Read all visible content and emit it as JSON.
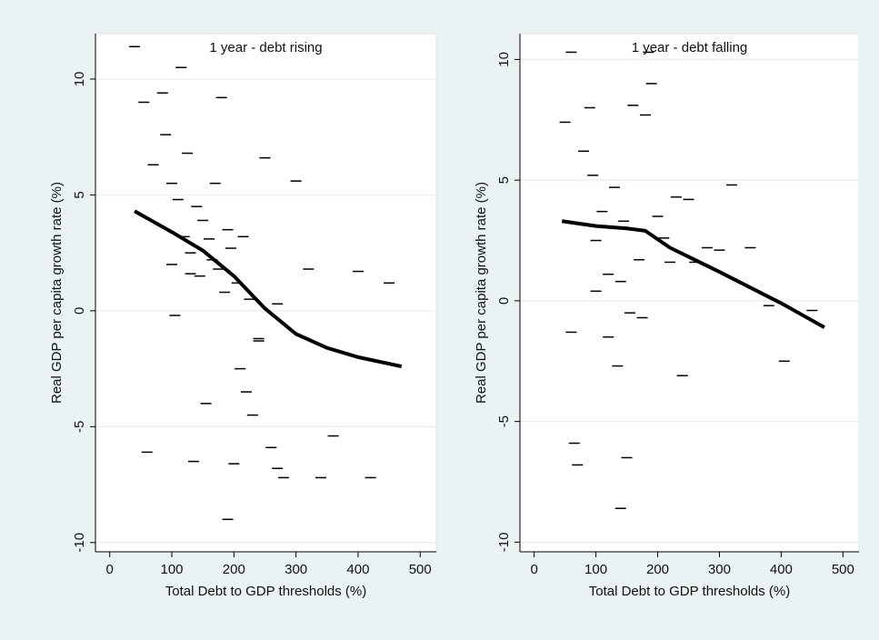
{
  "chart_data": [
    {
      "type": "scatter",
      "title": "1 year - debt rising",
      "xlabel": "Total Debt to GDP thresholds (%)",
      "ylabel": "Real GDP per capita growth rate (%)",
      "xlim": [
        -23,
        526
      ],
      "ylim": [
        -10.4,
        11.96
      ],
      "xticks": [
        0,
        100,
        200,
        300,
        400,
        500
      ],
      "yticks": [
        -10,
        -5,
        0,
        5,
        10
      ],
      "grid": true,
      "series": [
        {
          "type": "scatter",
          "color": "#000000",
          "x": [
            40,
            55,
            70,
            85,
            90,
            100,
            105,
            110,
            115,
            120,
            125,
            130,
            135,
            140,
            145,
            150,
            155,
            160,
            165,
            170,
            175,
            180,
            185,
            190,
            195,
            200,
            205,
            210,
            215,
            220,
            225,
            230,
            240,
            250,
            260,
            270,
            280,
            300,
            320,
            340,
            360,
            400,
            420,
            450,
            190,
            60,
            130,
            240,
            270,
            100
          ],
          "values": [
            11.4,
            9,
            6.3,
            9.4,
            7.6,
            5.5,
            -0.2,
            4.8,
            10.5,
            3.2,
            6.8,
            2.5,
            -6.5,
            4.5,
            1.5,
            3.9,
            -4,
            3.1,
            2.2,
            5.5,
            1.8,
            9.2,
            0.8,
            3.5,
            2.7,
            -6.6,
            1.2,
            -2.5,
            3.2,
            -3.5,
            0.5,
            -4.5,
            -1.2,
            6.6,
            -5.9,
            -6.8,
            -7.2,
            5.6,
            1.8,
            -7.2,
            -5.4,
            1.7,
            -7.2,
            1.2,
            -9,
            -6.1,
            1.6,
            -1.3,
            0.3,
            2
          ]
        },
        {
          "type": "line",
          "color": "#000000",
          "x": [
            40,
            100,
            150,
            200,
            250,
            300,
            350,
            400,
            470
          ],
          "values": [
            4.3,
            3.4,
            2.6,
            1.5,
            0.1,
            -1.0,
            -1.6,
            -2.0,
            -2.4
          ]
        }
      ]
    },
    {
      "type": "scatter",
      "title": "1 year - debt falling",
      "xlabel": "Total Debt to GDP thresholds (%)",
      "ylabel": "Real GDP per capita growth rate (%)",
      "xlim": [
        -23,
        526
      ],
      "ylim": [
        -10.4,
        11.07
      ],
      "xticks": [
        0,
        100,
        200,
        300,
        400,
        500
      ],
      "yticks": [
        -10,
        -5,
        0,
        5,
        10
      ],
      "grid": true,
      "series": [
        {
          "type": "scatter",
          "color": "#000000",
          "x": [
            50,
            60,
            70,
            80,
            90,
            95,
            100,
            110,
            120,
            130,
            135,
            140,
            145,
            150,
            160,
            170,
            180,
            185,
            190,
            200,
            210,
            220,
            230,
            240,
            250,
            260,
            280,
            300,
            320,
            350,
            380,
            405,
            450,
            65,
            140,
            155,
            100,
            120,
            175,
            60
          ],
          "values": [
            7.4,
            10.3,
            -6.8,
            6.2,
            8,
            5.2,
            2.5,
            3.7,
            -1.5,
            4.7,
            -2.7,
            -8.6,
            3.3,
            -6.5,
            8.1,
            1.7,
            7.7,
            10.3,
            9,
            3.5,
            2.6,
            1.6,
            4.3,
            -3.1,
            4.2,
            1.6,
            2.2,
            2.1,
            4.8,
            2.2,
            -0.2,
            -2.5,
            -0.4,
            -5.9,
            0.8,
            -0.5,
            0.4,
            1.1,
            -0.7,
            -1.3
          ]
        },
        {
          "type": "line",
          "color": "#000000",
          "x": [
            45,
            100,
            150,
            180,
            220,
            300,
            400,
            470
          ],
          "values": [
            3.3,
            3.1,
            3.0,
            2.9,
            2.2,
            1.2,
            -0.1,
            -1.1
          ]
        }
      ]
    }
  ]
}
